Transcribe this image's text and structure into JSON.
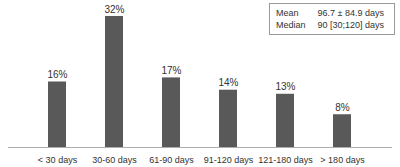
{
  "chart_data": {
    "type": "bar",
    "categories": [
      "< 30 days",
      "30-60 days",
      "61-90 days",
      "91-120 days",
      "121-180 days",
      "> 180 days"
    ],
    "values": [
      16,
      32,
      17,
      14,
      13,
      8
    ],
    "value_labels": [
      "16%",
      "32%",
      "17%",
      "14%",
      "13%",
      "8%"
    ],
    "data_labels": true,
    "color": "#595959",
    "ylim": [
      0,
      32
    ],
    "yticks": [],
    "tick_labels": "x",
    "grid": false,
    "annotations": [
      [
        "Mean",
        "96.7 ± 84.9 days"
      ],
      [
        "Median",
        "90 [30;120] days"
      ]
    ]
  }
}
